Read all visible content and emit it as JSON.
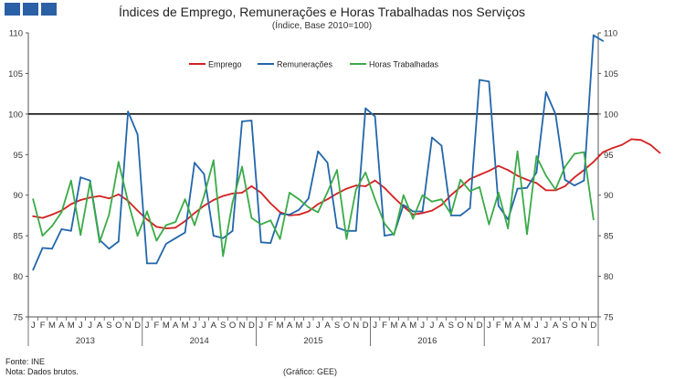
{
  "header": {
    "title": "Índices de Emprego, Remunerações e Horas Trabalhadas nos Serviços",
    "subtitle": "(Índice, Base 2010=100)"
  },
  "footer": {
    "source": "Fonte: INE",
    "note": "Nota: Dados brutos.",
    "credit": "(Gráfico: GEE)"
  },
  "chart_data": {
    "type": "line",
    "title": "Índices de Emprego, Remunerações e Horas Trabalhadas nos Serviços",
    "subtitle": "(Índice, Base 2010=100)",
    "ylim": [
      75,
      110
    ],
    "yticks": [
      75,
      80,
      85,
      90,
      95,
      100,
      105,
      110
    ],
    "y_axis_both_sides": true,
    "reference_line": 100,
    "grid": false,
    "legend_position": "top-center",
    "month_labels": [
      "J",
      "F",
      "M",
      "A",
      "M",
      "J",
      "J",
      "A",
      "S",
      "O",
      "N",
      "D"
    ],
    "years": [
      "2013",
      "2014",
      "2015",
      "2016",
      "2017"
    ],
    "series": [
      {
        "name": "Emprego",
        "color": "#d42020",
        "values": [
          87.4,
          87.2,
          87.6,
          88.1,
          88.9,
          89.4,
          89.7,
          89.9,
          89.6,
          90.1,
          89.3,
          88.1,
          87.0,
          86.1,
          85.9,
          86.0,
          86.8,
          87.8,
          88.7,
          89.4,
          89.9,
          90.2,
          90.3,
          91.1,
          90.3,
          89.0,
          87.9,
          87.5,
          87.6,
          88.0,
          88.9,
          89.5,
          90.2,
          90.8,
          91.2,
          91.1,
          91.8,
          90.9,
          89.7,
          88.6,
          87.6,
          87.8,
          88.1,
          88.8,
          90.0,
          91.0,
          92.0,
          92.5,
          93.0,
          93.6,
          93.1,
          92.4,
          91.9,
          91.5,
          90.6,
          90.6,
          91.1,
          92.2,
          93.1,
          94.1,
          95.3,
          95.8,
          96.2,
          96.9,
          96.8,
          96.2,
          95.2
        ]
      },
      {
        "name": "Remunerações",
        "color": "#2266aa",
        "values": [
          80.8,
          83.5,
          83.4,
          85.8,
          85.6,
          92.2,
          91.8,
          84.5,
          83.4,
          84.3,
          100.3,
          97.5,
          81.6,
          81.6,
          84.0,
          84.7,
          85.4,
          94.0,
          92.6,
          85.0,
          84.7,
          85.6,
          99.1,
          99.2,
          84.2,
          84.1,
          87.7,
          87.6,
          88.2,
          89.6,
          95.4,
          94.0,
          86.0,
          85.6,
          85.6,
          100.7,
          99.7,
          85.0,
          85.2,
          88.8,
          88.0,
          88.0,
          97.1,
          96.1,
          87.5,
          87.5,
          88.4,
          104.2,
          104.0,
          88.7,
          87.0,
          90.8,
          90.9,
          92.8,
          102.7,
          100.0,
          91.9,
          91.2,
          91.8,
          109.7,
          109.0
        ]
      },
      {
        "name": "Horas Trabalhadas",
        "color": "#3aaa48",
        "values": [
          89.5,
          85.0,
          86.2,
          87.9,
          91.8,
          85.1,
          91.6,
          84.2,
          87.6,
          94.1,
          89.2,
          85.0,
          88.0,
          84.4,
          86.3,
          86.7,
          89.5,
          86.3,
          89.9,
          94.3,
          82.5,
          89.1,
          93.5,
          87.2,
          86.4,
          86.9,
          84.6,
          90.3,
          89.5,
          88.5,
          87.9,
          90.4,
          93.1,
          84.6,
          90.7,
          92.8,
          89.5,
          86.5,
          85.1,
          90.0,
          87.1,
          90.0,
          89.2,
          89.5,
          87.7,
          91.9,
          90.5,
          91.0,
          86.4,
          90.3,
          85.9,
          95.4,
          85.2,
          94.8,
          92.4,
          90.7,
          93.5,
          95.1,
          95.3,
          87.0
        ]
      }
    ]
  }
}
